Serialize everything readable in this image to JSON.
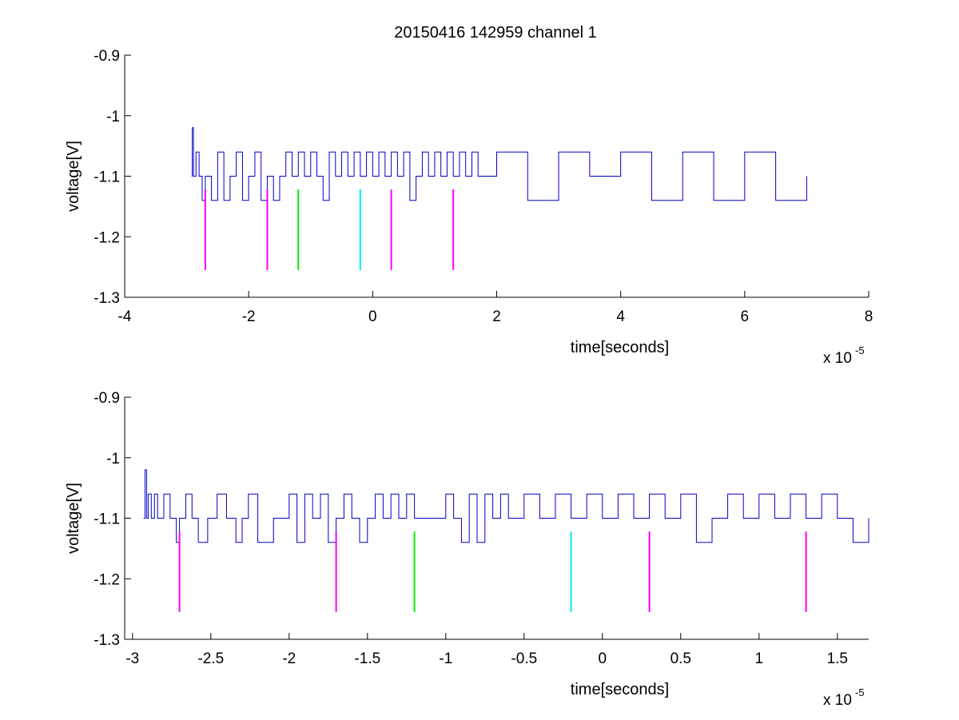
{
  "figure_title": "20150416 142959 channel 1",
  "colors": {
    "signal": "#0000c8",
    "marker_magenta": "#ff00ff",
    "marker_green": "#00ee00",
    "marker_cyan": "#00eeee"
  },
  "chart_data": [
    {
      "type": "line",
      "title": "20150416 142959 channel 1",
      "xlabel": "time[seconds]",
      "ylabel": "voltage[V]",
      "x_multiplier": "x 10",
      "x_exponent": "-5",
      "xlim": [
        -4,
        8
      ],
      "ylim": [
        -1.3,
        -0.9
      ],
      "xticks": [
        -4,
        -2,
        0,
        2,
        4,
        6,
        8
      ],
      "xtick_labels": [
        "-4",
        "-2",
        "0",
        "2",
        "4",
        "6",
        "8"
      ],
      "yticks": [
        -1.3,
        -1.2,
        -1.1,
        -1,
        -0.9
      ],
      "ytick_labels": [
        "-1.3",
        "-1.2",
        "-1.1",
        "-1",
        "-0.9"
      ],
      "grid": false,
      "series": [
        {
          "color": "#0000c8",
          "x": [
            -2.92,
            -2.91,
            -2.89,
            -2.85,
            -2.8,
            -2.75,
            -2.7,
            -2.6,
            -2.5,
            -2.4,
            -2.3,
            -2.2,
            -2.1,
            -2.0,
            -1.9,
            -1.8,
            -1.7,
            -1.6,
            -1.5,
            -1.4,
            -1.3,
            -1.2,
            -1.1,
            -1.0,
            -0.9,
            -0.8,
            -0.7,
            -0.6,
            -0.5,
            -0.4,
            -0.3,
            -0.2,
            -0.1,
            0.0,
            0.1,
            0.2,
            0.3,
            0.4,
            0.5,
            0.6,
            0.7,
            0.8,
            0.9,
            1.0,
            1.1,
            1.2,
            1.3,
            1.4,
            1.5,
            1.6,
            1.7,
            2.0,
            2.5,
            3.0,
            3.5,
            4.0,
            4.5,
            5.0,
            5.5,
            6.0,
            6.5,
            7.0
          ],
          "y": [
            -1.1,
            -1.02,
            -1.1,
            -1.06,
            -1.1,
            -1.14,
            -1.1,
            -1.14,
            -1.06,
            -1.14,
            -1.1,
            -1.06,
            -1.14,
            -1.1,
            -1.06,
            -1.14,
            -1.1,
            -1.14,
            -1.1,
            -1.06,
            -1.1,
            -1.06,
            -1.1,
            -1.06,
            -1.1,
            -1.14,
            -1.06,
            -1.1,
            -1.06,
            -1.1,
            -1.06,
            -1.1,
            -1.06,
            -1.1,
            -1.06,
            -1.1,
            -1.06,
            -1.1,
            -1.06,
            -1.14,
            -1.1,
            -1.06,
            -1.1,
            -1.06,
            -1.1,
            -1.06,
            -1.1,
            -1.06,
            -1.1,
            -1.06,
            -1.1,
            -1.06,
            -1.14,
            -1.06,
            -1.1,
            -1.06,
            -1.14,
            -1.06,
            -1.14,
            -1.06,
            -1.14,
            -1.1
          ]
        }
      ],
      "markers": [
        {
          "x": -2.7,
          "y0": -1.255,
          "y1": -1.122,
          "color": "#ff00ff"
        },
        {
          "x": -1.7,
          "y0": -1.255,
          "y1": -1.122,
          "color": "#ff00ff"
        },
        {
          "x": -1.2,
          "y0": -1.255,
          "y1": -1.122,
          "color": "#00ee00"
        },
        {
          "x": -0.2,
          "y0": -1.255,
          "y1": -1.122,
          "color": "#00eeee"
        },
        {
          "x": 0.3,
          "y0": -1.255,
          "y1": -1.122,
          "color": "#ff00ff"
        },
        {
          "x": 1.3,
          "y0": -1.255,
          "y1": -1.122,
          "color": "#ff00ff"
        }
      ]
    },
    {
      "type": "line",
      "title": "",
      "xlabel": "time[seconds]",
      "ylabel": "voltage[V]",
      "x_multiplier": "x 10",
      "x_exponent": "-5",
      "xlim": [
        -3.05,
        1.7
      ],
      "ylim": [
        -1.3,
        -0.9
      ],
      "xticks": [
        -3,
        -2.5,
        -2,
        -1.5,
        -1,
        -0.5,
        0,
        0.5,
        1,
        1.5
      ],
      "xtick_labels": [
        "-3",
        "-2.5",
        "-2",
        "-1.5",
        "-1",
        "-0.5",
        "0",
        "0.5",
        "1",
        "1.5"
      ],
      "yticks": [
        -1.3,
        -1.2,
        -1.1,
        -1,
        -0.9
      ],
      "ytick_labels": [
        "-1.3",
        "-1.2",
        "-1.1",
        "-1",
        "-0.9"
      ],
      "grid": false,
      "series": [
        {
          "color": "#0000c8",
          "x": [
            -2.93,
            -2.92,
            -2.91,
            -2.9,
            -2.88,
            -2.86,
            -2.84,
            -2.8,
            -2.76,
            -2.72,
            -2.7,
            -2.66,
            -2.62,
            -2.58,
            -2.52,
            -2.46,
            -2.4,
            -2.34,
            -2.3,
            -2.26,
            -2.2,
            -2.1,
            -2.0,
            -1.95,
            -1.9,
            -1.85,
            -1.8,
            -1.75,
            -1.7,
            -1.65,
            -1.6,
            -1.55,
            -1.5,
            -1.45,
            -1.4,
            -1.35,
            -1.3,
            -1.25,
            -1.2,
            -1.1,
            -1.0,
            -0.95,
            -0.9,
            -0.85,
            -0.8,
            -0.75,
            -0.7,
            -0.65,
            -0.6,
            -0.5,
            -0.4,
            -0.3,
            -0.2,
            -0.1,
            0.0,
            0.1,
            0.2,
            0.3,
            0.4,
            0.5,
            0.6,
            0.7,
            0.8,
            0.9,
            1.0,
            1.1,
            1.2,
            1.3,
            1.4,
            1.5,
            1.6,
            1.7
          ],
          "y": [
            -1.1,
            -1.02,
            -1.1,
            -1.06,
            -1.1,
            -1.06,
            -1.1,
            -1.06,
            -1.1,
            -1.14,
            -1.1,
            -1.06,
            -1.1,
            -1.14,
            -1.1,
            -1.06,
            -1.1,
            -1.14,
            -1.1,
            -1.06,
            -1.14,
            -1.1,
            -1.06,
            -1.14,
            -1.06,
            -1.1,
            -1.06,
            -1.14,
            -1.1,
            -1.06,
            -1.1,
            -1.14,
            -1.1,
            -1.06,
            -1.1,
            -1.06,
            -1.1,
            -1.06,
            -1.1,
            -1.1,
            -1.06,
            -1.1,
            -1.14,
            -1.06,
            -1.14,
            -1.06,
            -1.1,
            -1.06,
            -1.1,
            -1.06,
            -1.1,
            -1.06,
            -1.1,
            -1.06,
            -1.1,
            -1.06,
            -1.1,
            -1.06,
            -1.1,
            -1.06,
            -1.14,
            -1.1,
            -1.06,
            -1.1,
            -1.06,
            -1.1,
            -1.06,
            -1.1,
            -1.06,
            -1.1,
            -1.14,
            -1.1
          ]
        }
      ],
      "markers": [
        {
          "x": -2.7,
          "y0": -1.255,
          "y1": -1.122,
          "color": "#ff00ff"
        },
        {
          "x": -1.7,
          "y0": -1.255,
          "y1": -1.122,
          "color": "#ff00ff"
        },
        {
          "x": -1.2,
          "y0": -1.255,
          "y1": -1.122,
          "color": "#00ee00"
        },
        {
          "x": -0.2,
          "y0": -1.255,
          "y1": -1.122,
          "color": "#00eeee"
        },
        {
          "x": 0.3,
          "y0": -1.255,
          "y1": -1.122,
          "color": "#ff00ff"
        },
        {
          "x": 1.3,
          "y0": -1.255,
          "y1": -1.122,
          "color": "#ff00ff"
        }
      ]
    }
  ]
}
